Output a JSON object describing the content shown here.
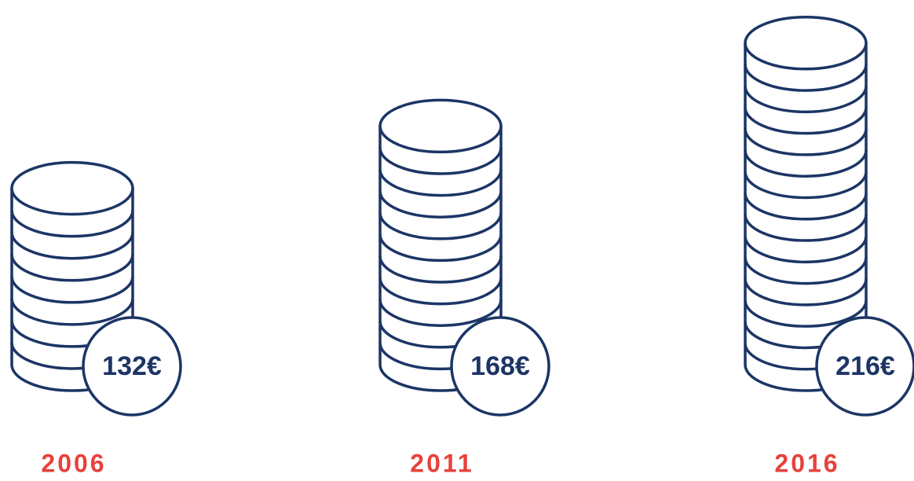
{
  "chart_data": {
    "type": "pictograph",
    "categories": [
      "2006",
      "2011",
      "2016"
    ],
    "values": [
      132,
      168,
      216
    ],
    "value_labels": [
      "132€",
      "168€",
      "216€"
    ],
    "color": "#1c3565",
    "label_color": "#e8413c"
  }
}
